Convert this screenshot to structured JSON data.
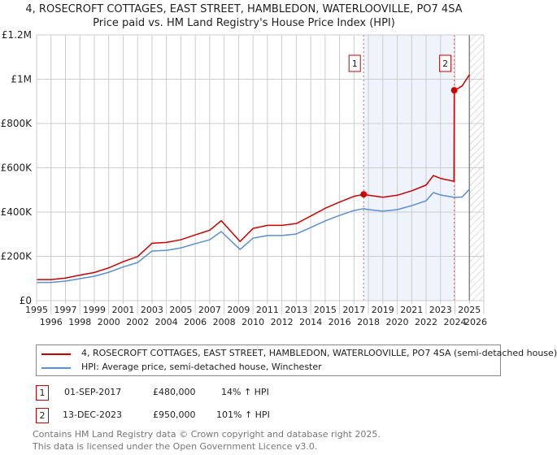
{
  "chart_data": {
    "type": "line",
    "title": "4, ROSECROFT COTTAGES, EAST STREET, HAMBLEDON, WATERLOOVILLE, PO7 4SA",
    "subtitle": "Price paid vs. HM Land Registry's House Price Index (HPI)",
    "xlim": [
      1995,
      2026
    ],
    "ylim": [
      0,
      1200000
    ],
    "x_ticks": [
      "1995",
      "1996",
      "1997",
      "1998",
      "1999",
      "2000",
      "2001",
      "2002",
      "2003",
      "2004",
      "2005",
      "2006",
      "2007",
      "2008",
      "2009",
      "2010",
      "2011",
      "2012",
      "2013",
      "2014",
      "2015",
      "2016",
      "2017",
      "2018",
      "2019",
      "2020",
      "2021",
      "2022",
      "2023",
      "2024",
      "2025",
      "2026"
    ],
    "y_ticks": [
      {
        "v": 0,
        "label": "£0"
      },
      {
        "v": 200000,
        "label": "£200K"
      },
      {
        "v": 400000,
        "label": "£400K"
      },
      {
        "v": 600000,
        "label": "£600K"
      },
      {
        "v": 800000,
        "label": "£800K"
      },
      {
        "v": 1000000,
        "label": "£1M"
      },
      {
        "v": 1200000,
        "label": "£1.2M"
      }
    ],
    "grid": true,
    "series": [
      {
        "name": "4, ROSECROFT COTTAGES, EAST STREET, HAMBLEDON, WATERLOOVILLE, PO7 4SA (semi-detached house)",
        "color": "#cc0000",
        "x": [
          1995,
          1996,
          1997,
          1998,
          1999,
          2000,
          2001,
          2002,
          2003,
          2004,
          2005,
          2006,
          2007,
          2007.8,
          2009.1,
          2010,
          2011,
          2012,
          2013,
          2014,
          2015,
          2016,
          2017,
          2017.67,
          2018,
          2019,
          2020,
          2021,
          2022,
          2022.5,
          2023,
          2023.93,
          2023.95,
          2024,
          2024.5,
          2025
        ],
        "y": [
          95000,
          95000,
          102000,
          115000,
          127000,
          148000,
          176000,
          199000,
          259000,
          263000,
          275000,
          297000,
          318000,
          361000,
          267000,
          326000,
          340000,
          340000,
          348000,
          382000,
          417000,
          445000,
          471000,
          480000,
          476000,
          467000,
          476000,
          496000,
          522000,
          565000,
          552000,
          539000,
          950000,
          950000,
          970000,
          1020000
        ]
      },
      {
        "name": "HPI: Average price, semi-detached house, Winchester",
        "color": "#5b8fd0",
        "x": [
          1995,
          1996,
          1997,
          1998,
          1999,
          2000,
          2001,
          2002,
          2003,
          2004,
          2005,
          2006,
          2007,
          2007.8,
          2009.1,
          2010,
          2011,
          2012,
          2013,
          2014,
          2015,
          2016,
          2017,
          2017.67,
          2018,
          2019,
          2020,
          2021,
          2022,
          2022.5,
          2023,
          2024,
          2024.5,
          2025
        ],
        "y": [
          82000,
          82000,
          88000,
          99000,
          110000,
          128000,
          152000,
          172000,
          224000,
          227000,
          238000,
          257000,
          275000,
          312000,
          231000,
          282000,
          294000,
          294000,
          301000,
          330000,
          360000,
          385000,
          407000,
          415000,
          411000,
          404000,
          411000,
          429000,
          451000,
          488000,
          477000,
          466000,
          468000,
          503000
        ]
      }
    ],
    "sales": [
      {
        "id": "1",
        "x": 2017.67,
        "date": "01-SEP-2017",
        "price": 480000,
        "price_label": "£480,000",
        "hpi": "14% ↑ HPI"
      },
      {
        "id": "2",
        "x": 2023.95,
        "date": "13-DEC-2023",
        "price": 950000,
        "price_label": "£950,000",
        "hpi": "101% ↑ HPI"
      }
    ],
    "forecast_start": 2025,
    "legend_position": "below"
  },
  "footer": {
    "line1": "Contains HM Land Registry data © Crown copyright and database right 2025.",
    "line2": "This data is licensed under the Open Government Licence v3.0."
  }
}
